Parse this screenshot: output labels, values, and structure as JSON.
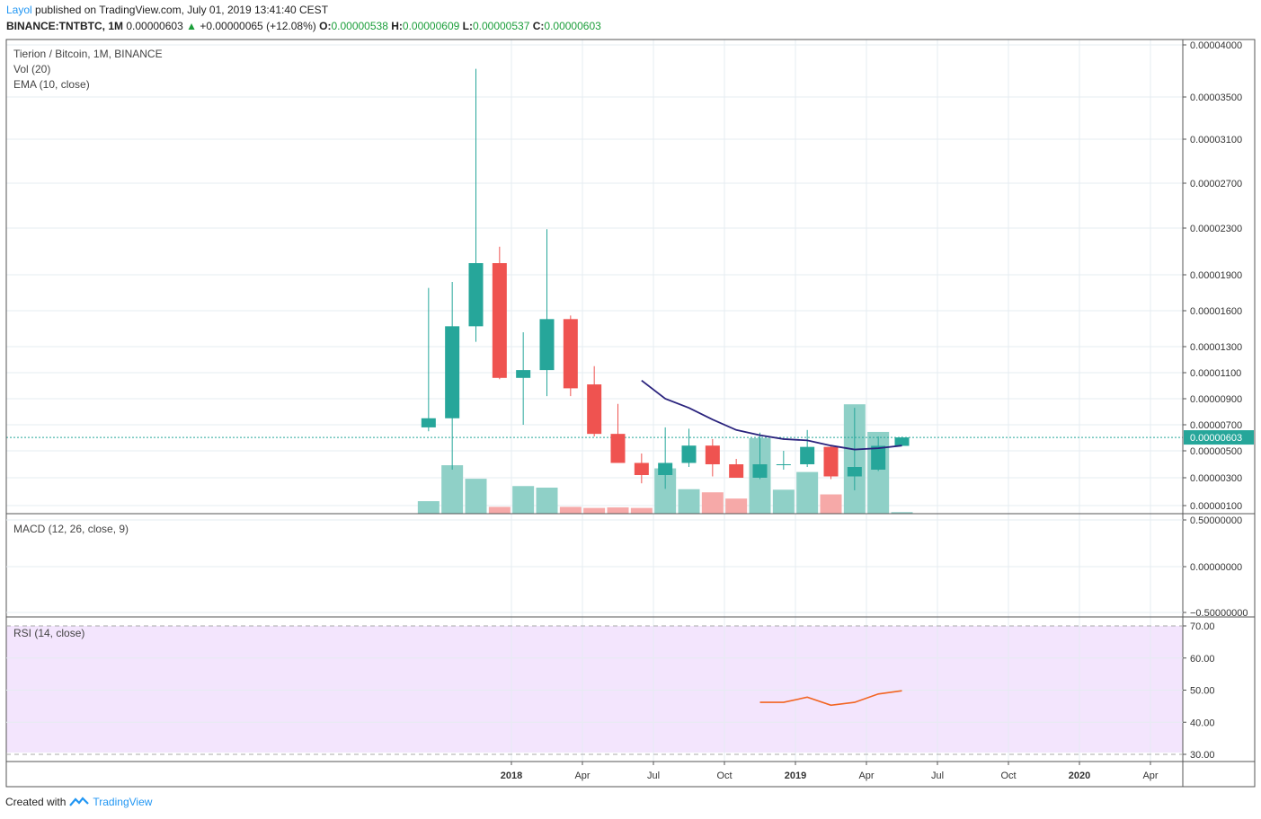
{
  "header": {
    "author": "Layol",
    "published_text": "published on TradingView.com, July 01, 2019 13:41:40 CEST",
    "symbol": "BINANCE:TNTBTC, 1M",
    "last": "0.00000603",
    "change": "+0.00000065 (+12.08%)",
    "o_label": "O:",
    "o": "0.00000538",
    "h_label": "H:",
    "h": "0.00000609",
    "l_label": "L:",
    "l": "0.00000537",
    "c_label": "C:",
    "c": "0.00000603"
  },
  "legend": {
    "title": "Tierion / Bitcoin, 1M, BINANCE",
    "vol": "Vol (20)",
    "ema": "EMA (10, close)",
    "macd": "MACD (12, 26, close, 9)",
    "rsi": "RSI (14, close)"
  },
  "footer": {
    "created_with": "Created with",
    "brand": "TradingView"
  },
  "colors": {
    "up": "#26a69a",
    "down": "#ef5350",
    "vol_up": "#8fd0c7",
    "vol_down": "#f6a9a8",
    "ema": "#2a237d",
    "rsi": "#f26522",
    "rsi_bg": "#f3e5fd",
    "grid": "#e6ecf2",
    "last_price_line": "#26a69a"
  },
  "chart_data": {
    "type": "candlestick",
    "scale": "log",
    "price_axis_labels": [
      "0.00004000",
      "0.00003500",
      "0.00003100",
      "0.00002700",
      "0.00002300",
      "0.00001900",
      "0.00001600",
      "0.00001300",
      "0.00001100",
      "0.00000900",
      "0.00000700",
      "0.00000500",
      "0.00000300",
      "0.00000100"
    ],
    "last_price_label": "0.00000603",
    "x_axis_labels": [
      "2018",
      "Apr",
      "Jul",
      "Oct",
      "2019",
      "Apr",
      "Jul",
      "Oct",
      "2020",
      "Apr"
    ],
    "candles": [
      {
        "month": "2017-10",
        "o": 6.8e-06,
        "h": 1.79e-05,
        "l": 6.5e-06,
        "c": 7.5e-06
      },
      {
        "month": "2017-11",
        "o": 7.5e-06,
        "h": 1.84e-05,
        "l": 3.6e-06,
        "c": 1.47e-05
      },
      {
        "month": "2017-12",
        "o": 1.47e-05,
        "h": 3.77e-05,
        "l": 1.34e-05,
        "c": 2e-05
      },
      {
        "month": "2018-01",
        "o": 2e-05,
        "h": 2.14e-05,
        "l": 1.05e-05,
        "c": 1.06e-05
      },
      {
        "month": "2018-02",
        "o": 1.06e-05,
        "h": 1.42e-05,
        "l": 7e-06,
        "c": 1.12e-05
      },
      {
        "month": "2018-03",
        "o": 1.12e-05,
        "h": 2.29e-05,
        "l": 9.2e-06,
        "c": 1.53e-05
      },
      {
        "month": "2018-04",
        "o": 1.53e-05,
        "h": 1.56e-05,
        "l": 9.2e-06,
        "c": 9.8e-06
      },
      {
        "month": "2018-05",
        "o": 1.01e-05,
        "h": 1.15e-05,
        "l": 6.1e-06,
        "c": 6.3e-06
      },
      {
        "month": "2018-06",
        "o": 6.3e-06,
        "h": 8.6e-06,
        "l": 4.1e-06,
        "c": 4.1e-06
      },
      {
        "month": "2018-07",
        "o": 4.1e-06,
        "h": 4.8e-06,
        "l": 2.6e-06,
        "c": 3.2e-06
      },
      {
        "month": "2018-08",
        "o": 3.2e-06,
        "h": 6.8e-06,
        "l": 2.2e-06,
        "c": 4.1e-06
      },
      {
        "month": "2018-09",
        "o": 4.1e-06,
        "h": 6.7e-06,
        "l": 3.8e-06,
        "c": 5.4e-06
      },
      {
        "month": "2018-10",
        "o": 5.4e-06,
        "h": 5.9e-06,
        "l": 3.1e-06,
        "c": 4e-06
      },
      {
        "month": "2018-11",
        "o": 4e-06,
        "h": 4.4e-06,
        "l": 3e-06,
        "c": 3e-06
      },
      {
        "month": "2018-12",
        "o": 3e-06,
        "h": 6.4e-06,
        "l": 2.9e-06,
        "c": 4e-06
      },
      {
        "month": "2019-01",
        "o": 4e-06,
        "h": 5e-06,
        "l": 3.6e-06,
        "c": 4e-06
      },
      {
        "month": "2019-02",
        "o": 4e-06,
        "h": 6.6e-06,
        "l": 3.8e-06,
        "c": 5.3e-06
      },
      {
        "month": "2019-03",
        "o": 5.3e-06,
        "h": 5.4e-06,
        "l": 2.9e-06,
        "c": 3.1e-06
      },
      {
        "month": "2019-04",
        "o": 3.1e-06,
        "h": 8.3e-06,
        "l": 2.1e-06,
        "c": 3.8e-06
      },
      {
        "month": "2019-05",
        "o": 3.6e-06,
        "h": 6.1e-06,
        "l": 3.5e-06,
        "c": 5.38e-06
      },
      {
        "month": "2019-06",
        "o": 5.38e-06,
        "h": 6.09e-06,
        "l": 5.37e-06,
        "c": 6.03e-06
      }
    ],
    "volume_relative": [
      0.24,
      0.93,
      0.67,
      0.13,
      0.53,
      0.5,
      0.13,
      0.11,
      0.12,
      0.11,
      0.87,
      0.47,
      0.41,
      0.29,
      1.45,
      0.46,
      0.8,
      0.37,
      2.1,
      1.57,
      0.03
    ],
    "ema": [
      {
        "month": "2018-07",
        "v": 1.04e-05
      },
      {
        "month": "2018-08",
        "v": 9e-06
      },
      {
        "month": "2018-09",
        "v": 8.3e-06
      },
      {
        "month": "2018-10",
        "v": 7.4e-06
      },
      {
        "month": "2018-11",
        "v": 6.6e-06
      },
      {
        "month": "2018-12",
        "v": 6.2e-06
      },
      {
        "month": "2019-01",
        "v": 5.9e-06
      },
      {
        "month": "2019-02",
        "v": 5.8e-06
      },
      {
        "month": "2019-03",
        "v": 5.4e-06
      },
      {
        "month": "2019-04",
        "v": 5.1e-06
      },
      {
        "month": "2019-05",
        "v": 5.2e-06
      },
      {
        "month": "2019-06",
        "v": 5.4e-06
      }
    ],
    "macd_axis_labels": [
      "0.50000000",
      "0.00000000",
      "−0.50000000"
    ],
    "rsi_axis_labels": [
      "70.00",
      "60.00",
      "50.00",
      "40.00",
      "30.00"
    ],
    "rsi": [
      {
        "month": "2018-12",
        "v": 46.2
      },
      {
        "month": "2019-01",
        "v": 46.2
      },
      {
        "month": "2019-02",
        "v": 47.8
      },
      {
        "month": "2019-03",
        "v": 45.3
      },
      {
        "month": "2019-04",
        "v": 46.2
      },
      {
        "month": "2019-05",
        "v": 48.8
      },
      {
        "month": "2019-06",
        "v": 49.8
      }
    ]
  }
}
